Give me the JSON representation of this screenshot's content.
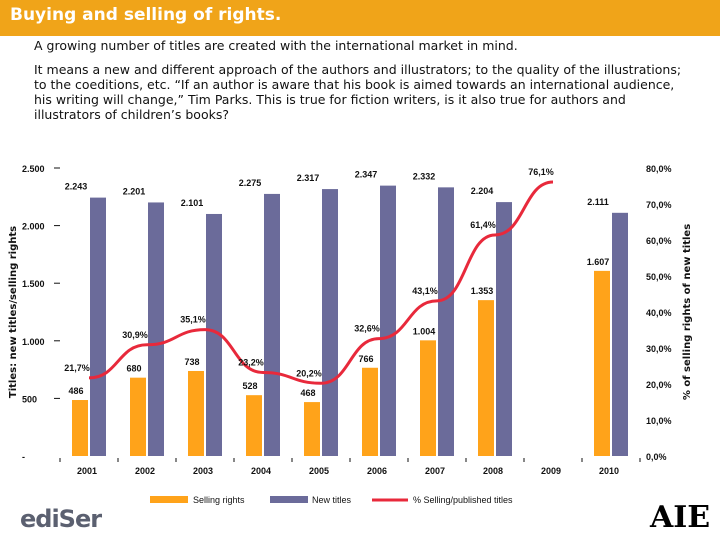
{
  "slide": {
    "title": "Buying and selling of rights.",
    "intro": "A growing number of titles are created with the international market in mind.",
    "paragraph": "It means a new and different approach of the authors and illustrators; to the quality of the illustrations; to the coeditions, etc. “If an author is aware that his book is aimed towards an international audience, his writing will change,” Tim Parks. This is true for fiction writers, is it also true for authors and illustrators of children’s books?"
  },
  "logos": {
    "left": "ediSer",
    "right": "AIE"
  },
  "colors": {
    "accent": "#f0a419",
    "selling": "#ffa31a",
    "newTitles": "#6b6b9a",
    "line": "#e8293b"
  },
  "chart_data": {
    "type": "bar",
    "categories": [
      "2001",
      "2002",
      "2003",
      "2004",
      "2005",
      "2006",
      "2007",
      "2008",
      "2009",
      "2010"
    ],
    "series": [
      {
        "name": "Selling rights",
        "values": [
          486,
          680,
          738,
          528,
          468,
          766,
          1004,
          1353,
          null,
          1607
        ],
        "labels": [
          "486",
          "680",
          "738",
          "528",
          "468",
          "766",
          "1.004",
          "1.353",
          "",
          "1.607"
        ]
      },
      {
        "name": "New titles",
        "values": [
          2243,
          2201,
          2101,
          2275,
          2317,
          2347,
          2332,
          2204,
          null,
          2111
        ],
        "labels": [
          "2.243",
          "2.201",
          "2.101",
          "2.275",
          "2.317",
          "2.347",
          "2.332",
          "2.204",
          "",
          "2.111"
        ]
      },
      {
        "name": "% Selling/published titles",
        "axis": "right",
        "values": [
          21.7,
          30.9,
          35.1,
          23.2,
          20.2,
          32.6,
          43.1,
          61.4,
          76.1,
          null
        ],
        "labels": [
          "21,7%",
          "30,9%",
          "35,1%",
          "23,2%",
          "20,2%",
          "32,6%",
          "43,1%",
          "61,4%",
          "76,1%",
          ""
        ]
      }
    ],
    "ylabel": "Titles: new titles/selling rights",
    "ylabel_right": "% of selling rights of new titles",
    "ylim": [
      0,
      2500
    ],
    "ylim_right": [
      0,
      80
    ],
    "yticks": [
      0,
      500,
      1000,
      1500,
      2000,
      2500
    ],
    "yticks_labels": [
      "-",
      "500",
      "1.000",
      "1.500",
      "2.000",
      "2.500"
    ],
    "yticks_right": [
      0,
      10,
      20,
      30,
      40,
      50,
      60,
      70,
      80
    ],
    "yticks_right_labels": [
      "0,0%",
      "10,0%",
      "20,0%",
      "30,0%",
      "40,0%",
      "50,0%",
      "60,0%",
      "70,0%",
      "80,0%"
    ],
    "grid": false,
    "legend_position": "bottom"
  }
}
